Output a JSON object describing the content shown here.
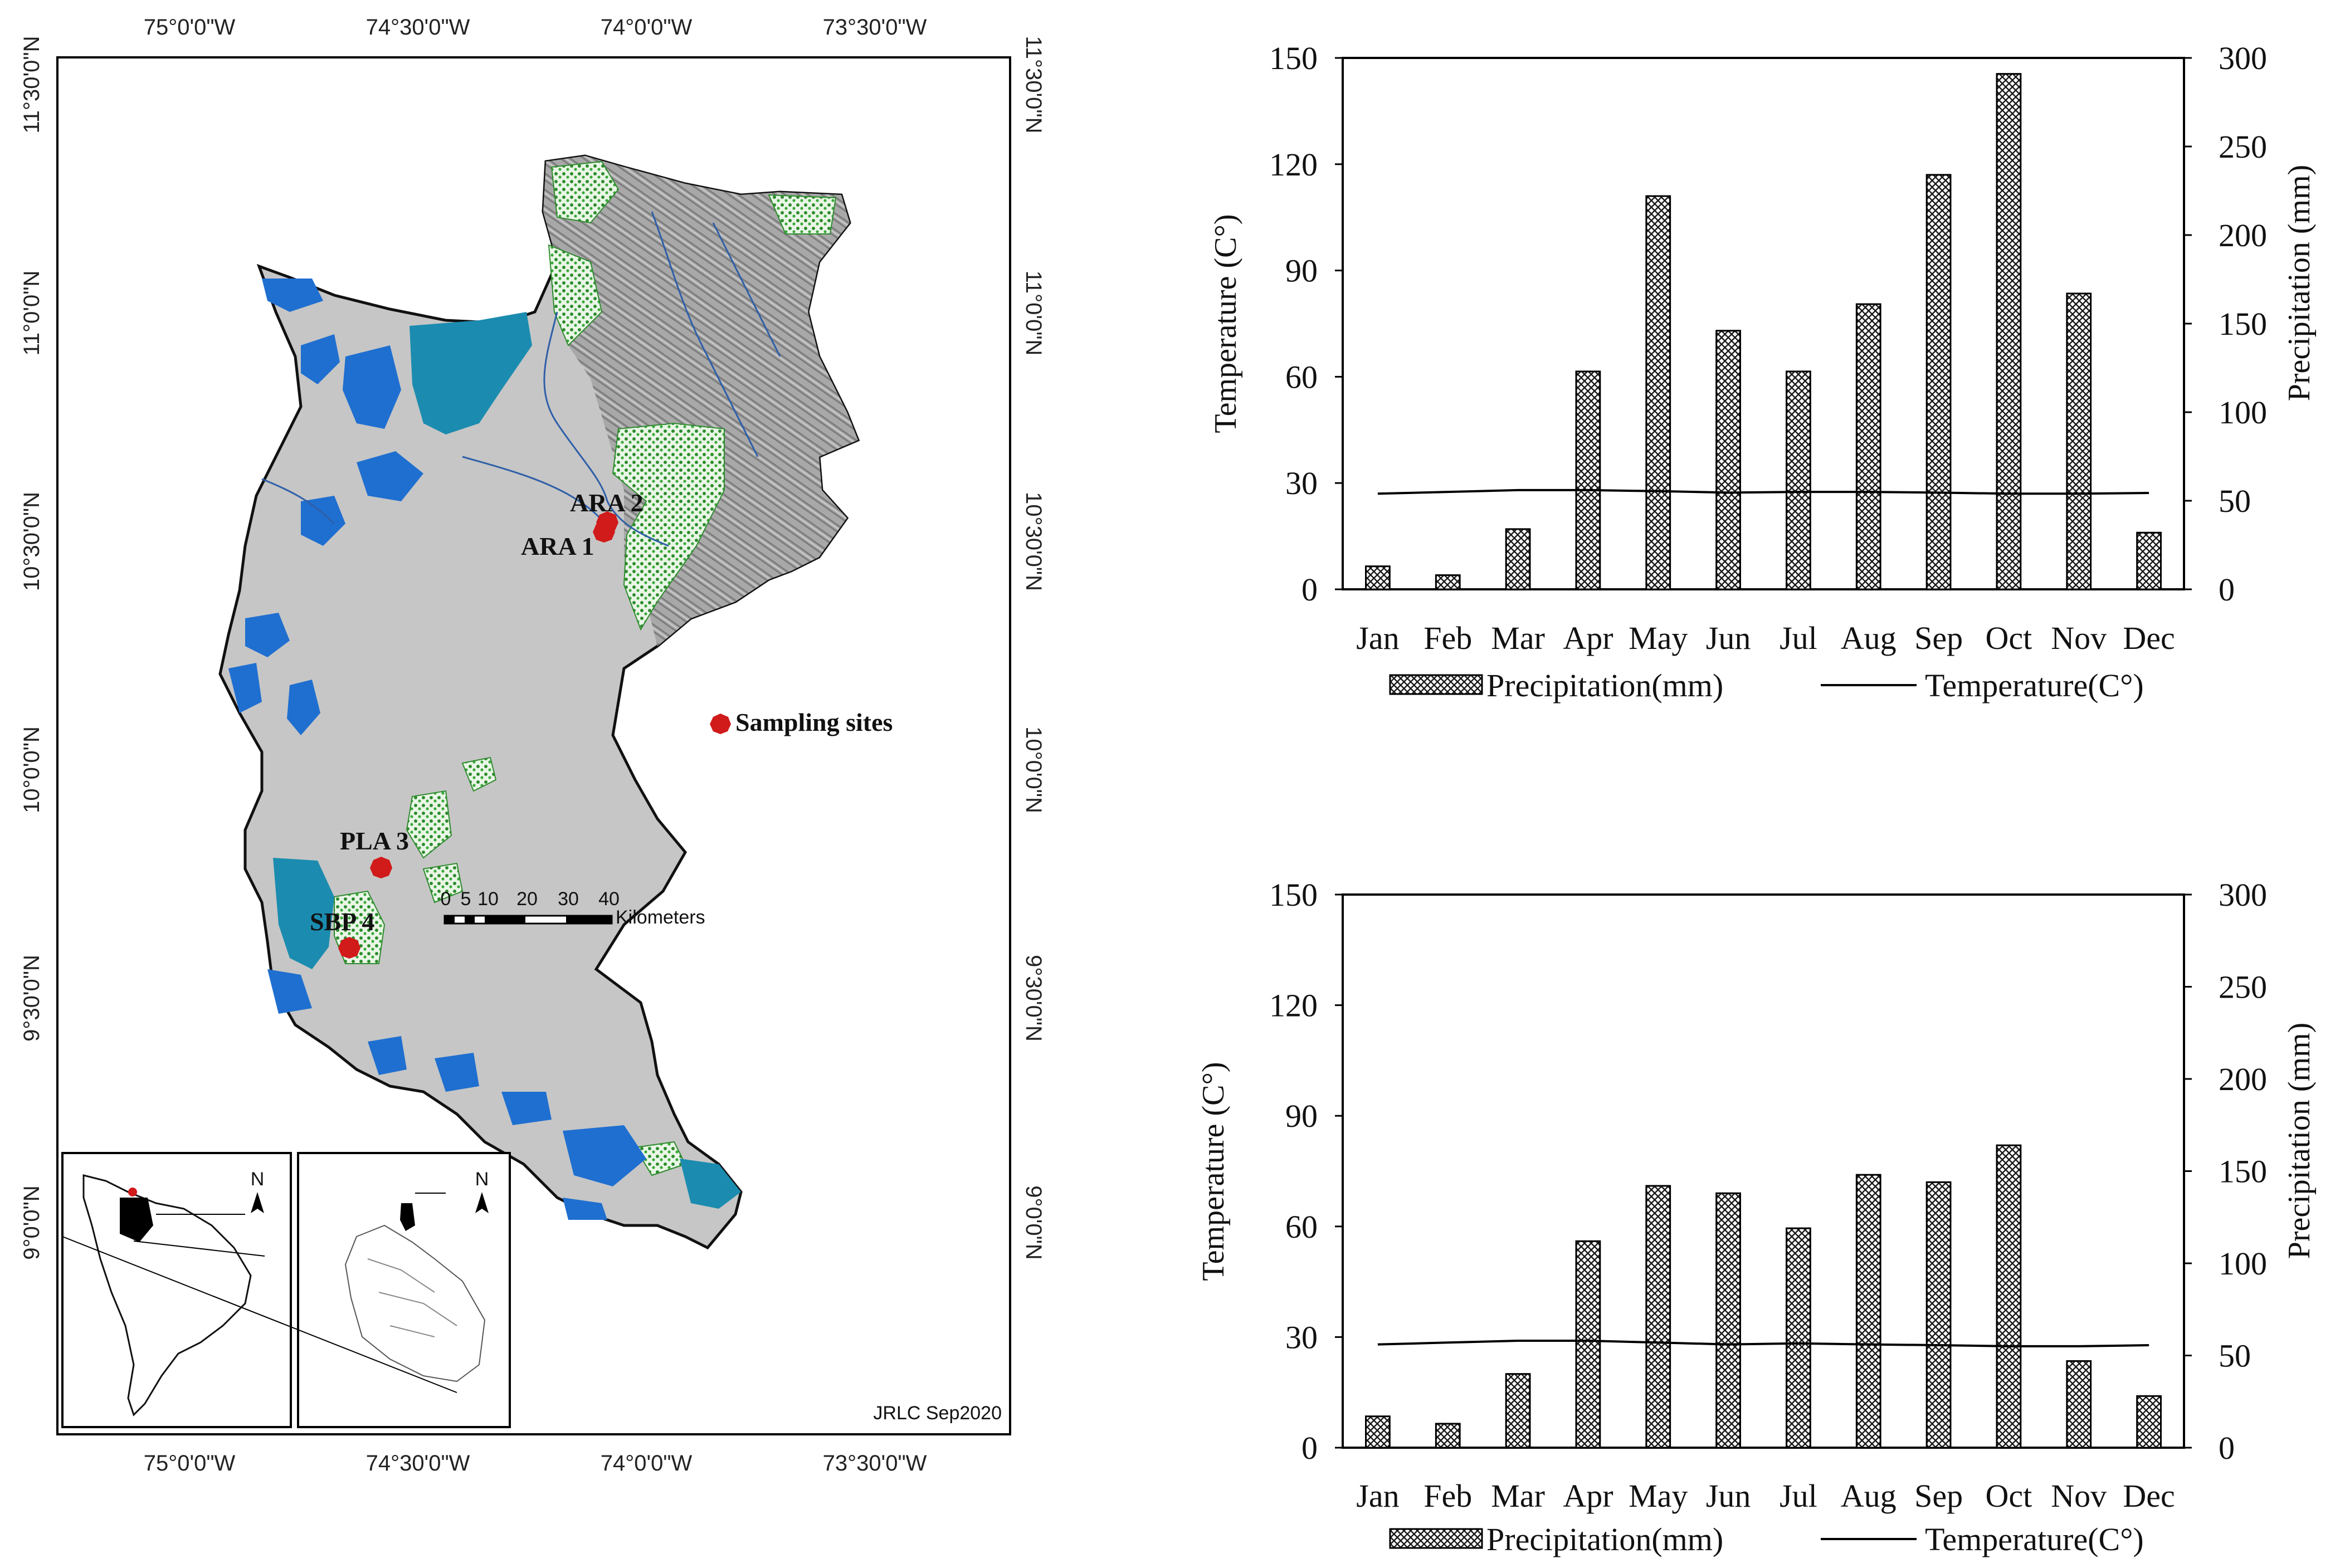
{
  "map": {
    "top_lon_labels": [
      "75°0'0\"W",
      "74°30'0\"W",
      "74°0'0\"W",
      "73°30'0\"W"
    ],
    "bottom_lon_labels": [
      "75°0'0\"W",
      "74°30'0\"W",
      "74°0'0\"W",
      "73°30'0\"W"
    ],
    "lat_labels": [
      "11°30'0\"N",
      "11°0'0\"N",
      "10°30'0\"N",
      "10°0'0\"N",
      "9°30'0\"N",
      "9°0'0\"N"
    ],
    "sites": [
      "ARA 2",
      "ARA 1",
      "PLA 3",
      "SBP 4"
    ],
    "legend_label": "Sampling sites",
    "scale_numbers": [
      "0",
      "5",
      "10",
      "20",
      "30",
      "40"
    ],
    "scale_unit": "Kilometers",
    "credit": "JRLC Sep2020",
    "north_label": "N",
    "colors": {
      "land": "#c6c6c6",
      "water": "#1b8cb0",
      "forest": "#2e8b2e",
      "site": "#d11a1a",
      "relief": "#9a9a9a"
    }
  },
  "chart_data": [
    {
      "type": "bar",
      "categories": [
        "Jan",
        "Feb",
        "Mar",
        "Apr",
        "May",
        "Jun",
        "Jul",
        "Aug",
        "Sep",
        "Oct",
        "Nov",
        "Dec"
      ],
      "series": [
        {
          "name": "Precipitation(mm)",
          "axis": "right",
          "values": [
            13,
            8,
            34,
            123,
            222,
            146,
            123,
            161,
            234,
            291,
            167,
            32
          ]
        },
        {
          "name": "Temperature(C°)",
          "axis": "left",
          "type": "line",
          "values": [
            27,
            27.5,
            28,
            28,
            27.7,
            27.3,
            27.5,
            27.5,
            27.3,
            27,
            27,
            27.2
          ]
        }
      ],
      "ylabel": "Temperature (C°)",
      "y2label": "Precipitation (mm)",
      "ylim": [
        0,
        150
      ],
      "y2lim": [
        0,
        300
      ],
      "yticks": [
        "0",
        "30",
        "60",
        "90",
        "120",
        "150"
      ],
      "y2ticks": [
        "0",
        "50",
        "100",
        "150",
        "200",
        "250",
        "300"
      ],
      "legend": [
        "Precipitation(mm)",
        "Temperature(C°)"
      ]
    },
    {
      "type": "bar",
      "categories": [
        "Jan",
        "Feb",
        "Mar",
        "Apr",
        "May",
        "Jun",
        "Jul",
        "Aug",
        "Sep",
        "Oct",
        "Nov",
        "Dec"
      ],
      "series": [
        {
          "name": "Precipitation(mm)",
          "axis": "right",
          "values": [
            17,
            13,
            40,
            112,
            142,
            138,
            119,
            148,
            144,
            164,
            47,
            28
          ]
        },
        {
          "name": "Temperature(C°)",
          "axis": "left",
          "type": "line",
          "values": [
            28,
            28.5,
            29,
            29,
            28.5,
            28,
            28.3,
            28,
            27.8,
            27.5,
            27.5,
            27.8
          ]
        }
      ],
      "ylabel": "Temperature (C°)",
      "y2label": "Precipitation (mm)",
      "ylim": [
        0,
        150
      ],
      "y2lim": [
        0,
        300
      ],
      "yticks": [
        "0",
        "30",
        "60",
        "90",
        "120",
        "150"
      ],
      "y2ticks": [
        "0",
        "50",
        "100",
        "150",
        "200",
        "250",
        "300"
      ],
      "legend": [
        "Precipitation(mm)",
        "Temperature(C°)"
      ]
    }
  ]
}
